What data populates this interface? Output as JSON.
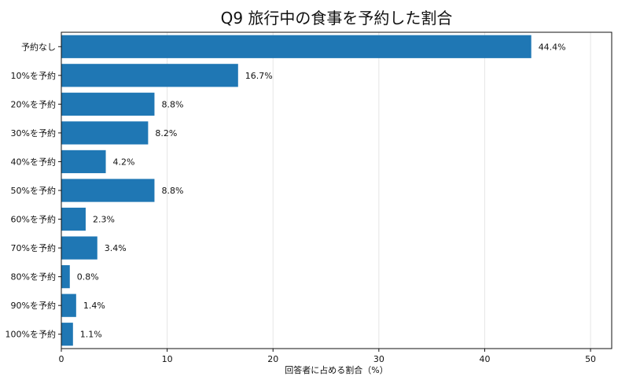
{
  "chart_data": {
    "type": "bar",
    "orientation": "horizontal",
    "title": "Q9 旅行中の食事を予約した割合",
    "xlabel": "回答者に占める割合（%）",
    "ylabel": "",
    "categories": [
      "予約なし",
      "10%を予約",
      "20%を予約",
      "30%を予約",
      "40%を予約",
      "50%を予約",
      "60%を予約",
      "70%を予約",
      "80%を予約",
      "90%を予約",
      "100%を予約"
    ],
    "values": [
      44.4,
      16.7,
      8.8,
      8.2,
      4.2,
      8.8,
      2.3,
      3.4,
      0.8,
      1.4,
      1.1
    ],
    "value_labels": [
      "44.4%",
      "16.7%",
      "8.8%",
      "8.2%",
      "4.2%",
      "8.8%",
      "2.3%",
      "3.4%",
      "0.8%",
      "1.4%",
      "1.1%"
    ],
    "xlim": [
      0,
      52
    ],
    "xticks": [
      0,
      10,
      20,
      30,
      40,
      50
    ],
    "grid": "vertical",
    "bar_color": "#1f77b4"
  }
}
